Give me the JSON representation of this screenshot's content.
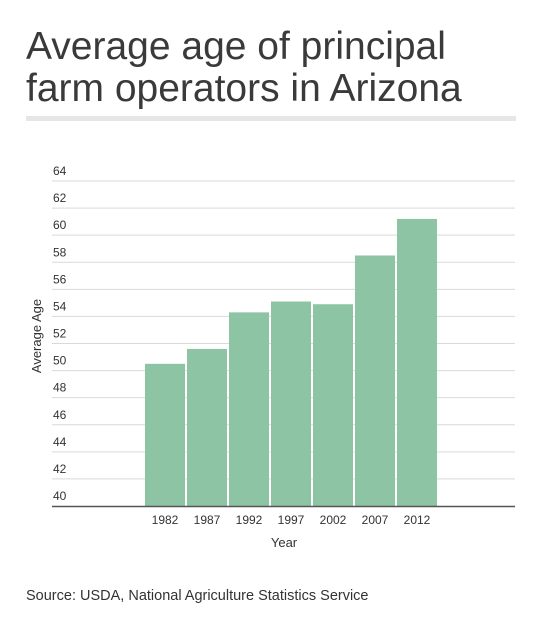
{
  "title": "Average age of principal farm operators in Arizona",
  "source": "Source: USDA, National Agriculture Statistics Service",
  "chart_data": {
    "type": "bar",
    "categories": [
      "1982",
      "1987",
      "1992",
      "1997",
      "2002",
      "2007",
      "2012"
    ],
    "values": [
      50.5,
      51.6,
      54.3,
      55.1,
      54.9,
      58.5,
      61.2
    ],
    "xlabel": "Year",
    "ylabel": "Average Age",
    "ylim": [
      40,
      64
    ],
    "yticks": [
      40,
      42,
      44,
      46,
      48,
      50,
      52,
      54,
      56,
      58,
      60,
      62,
      64
    ],
    "grid": true,
    "bar_color": "#8dc4a3",
    "grid_color": "#d9d9d9",
    "axis_color": "#555555"
  }
}
